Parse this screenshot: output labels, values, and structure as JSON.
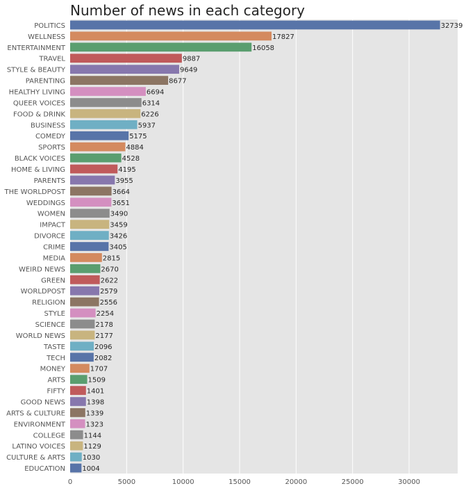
{
  "chart_data": {
    "type": "bar",
    "orientation": "horizontal",
    "title": "Number of news in each category",
    "xlabel": "",
    "ylabel": "",
    "xlim": [
      0,
      34300
    ],
    "xticks": [
      0,
      5000,
      10000,
      15000,
      20000,
      25000,
      30000
    ],
    "grid": true,
    "background": "#e5e5e5",
    "categories": [
      "POLITICS",
      "WELLNESS",
      "ENTERTAINMENT",
      "TRAVEL",
      "STYLE & BEAUTY",
      "PARENTING",
      "HEALTHY LIVING",
      "QUEER VOICES",
      "FOOD & DRINK",
      "BUSINESS",
      "COMEDY",
      "SPORTS",
      "BLACK VOICES",
      "HOME & LIVING",
      "PARENTS",
      "THE WORLDPOST",
      "WEDDINGS",
      "WOMEN",
      "IMPACT",
      "DIVORCE",
      "CRIME",
      "MEDIA",
      "WEIRD NEWS",
      "GREEN",
      "WORLDPOST",
      "RELIGION",
      "STYLE",
      "SCIENCE",
      "WORLD NEWS",
      "TASTE",
      "TECH",
      "MONEY",
      "ARTS",
      "FIFTY",
      "GOOD NEWS",
      "ARTS & CULTURE",
      "ENVIRONMENT",
      "COLLEGE",
      "LATINO VOICES",
      "CULTURE & ARTS",
      "EDUCATION"
    ],
    "values": [
      32739,
      17827,
      16058,
      9887,
      9649,
      8677,
      6694,
      6314,
      6226,
      5937,
      5175,
      4884,
      4528,
      4195,
      3955,
      3664,
      3651,
      3490,
      3459,
      3426,
      3405,
      2815,
      2670,
      2622,
      2579,
      2556,
      2254,
      2178,
      2177,
      2096,
      2082,
      1707,
      1509,
      1401,
      1398,
      1339,
      1323,
      1144,
      1129,
      1030,
      1004
    ],
    "palette": [
      "#5874a8",
      "#d48a5f",
      "#5a9e6f",
      "#c05a5b",
      "#8777ad",
      "#8c7563",
      "#d48fc0",
      "#8c8c8c",
      "#c8b47f",
      "#6fafc4"
    ]
  }
}
